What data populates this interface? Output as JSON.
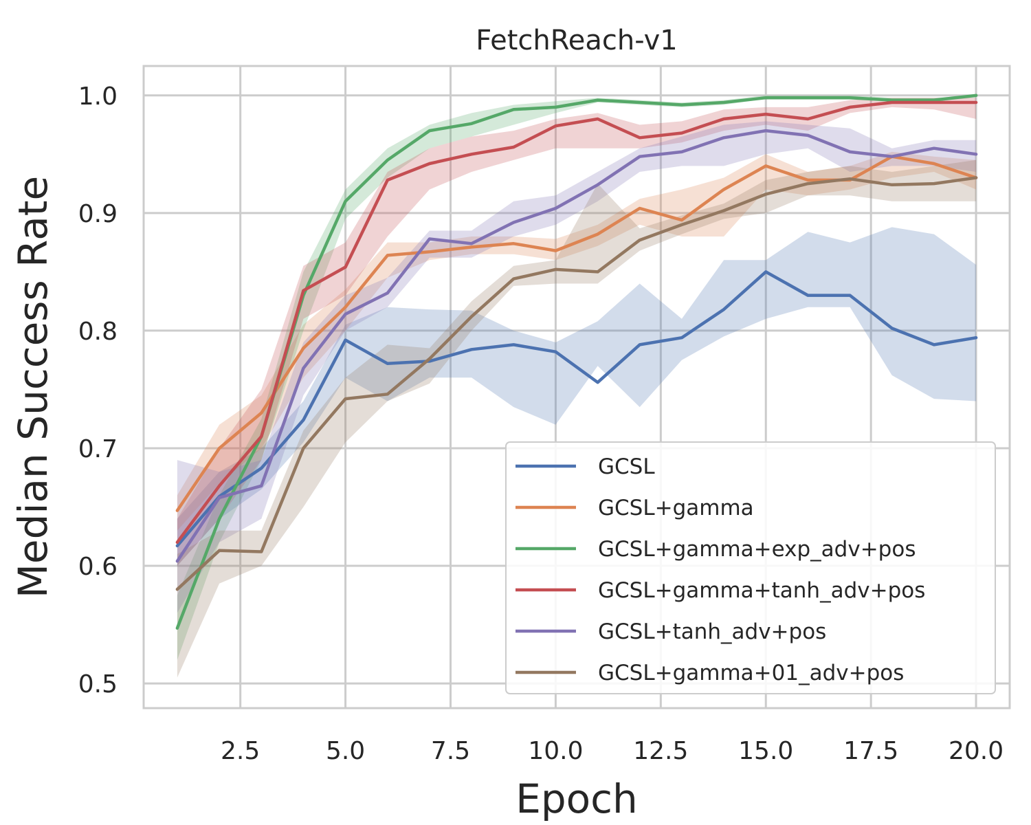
{
  "chart_data": {
    "type": "line",
    "title": "FetchReach-v1",
    "xlabel": "Epoch",
    "ylabel": "Median Success Rate",
    "xlim": [
      0.2,
      20.8
    ],
    "ylim": [
      0.479,
      1.025
    ],
    "xticks": [
      2.5,
      5.0,
      7.5,
      10.0,
      12.5,
      15.0,
      17.5,
      20.0
    ],
    "xtick_labels": [
      "2.5",
      "5.0",
      "7.5",
      "10.0",
      "12.5",
      "15.0",
      "17.5",
      "20.0"
    ],
    "yticks": [
      0.5,
      0.6,
      0.7,
      0.8,
      0.9,
      1.0
    ],
    "ytick_labels": [
      "0.5",
      "0.6",
      "0.7",
      "0.8",
      "0.9",
      "1.0"
    ],
    "grid": true,
    "legend_position": "lower-right",
    "x": [
      1,
      2,
      3,
      4,
      5,
      6,
      7,
      8,
      9,
      10,
      11,
      12,
      13,
      14,
      15,
      16,
      17,
      18,
      19,
      20
    ],
    "series": [
      {
        "name": "GCSL",
        "color": "#4c72b0",
        "values": [
          0.617,
          0.659,
          0.683,
          0.724,
          0.792,
          0.772,
          0.774,
          0.784,
          0.788,
          0.782,
          0.756,
          0.788,
          0.794,
          0.818,
          0.85,
          0.83,
          0.83,
          0.802,
          0.788,
          0.794
        ],
        "lower": [
          0.6,
          0.64,
          0.665,
          0.705,
          0.76,
          0.74,
          0.76,
          0.76,
          0.735,
          0.72,
          0.77,
          0.735,
          0.775,
          0.795,
          0.81,
          0.82,
          0.82,
          0.762,
          0.742,
          0.74
        ],
        "upper": [
          0.64,
          0.68,
          0.7,
          0.74,
          0.805,
          0.82,
          0.818,
          0.817,
          0.8,
          0.79,
          0.808,
          0.84,
          0.81,
          0.86,
          0.86,
          0.884,
          0.875,
          0.888,
          0.882,
          0.856
        ]
      },
      {
        "name": "GCSL+gamma",
        "color": "#dd8452",
        "values": [
          0.647,
          0.7,
          0.73,
          0.785,
          0.82,
          0.864,
          0.867,
          0.871,
          0.874,
          0.868,
          0.882,
          0.904,
          0.894,
          0.92,
          0.94,
          0.928,
          0.928,
          0.948,
          0.942,
          0.93
        ],
        "lower": [
          0.63,
          0.67,
          0.7,
          0.76,
          0.8,
          0.845,
          0.86,
          0.865,
          0.865,
          0.86,
          0.872,
          0.89,
          0.88,
          0.88,
          0.92,
          0.915,
          0.92,
          0.93,
          0.935,
          0.92
        ],
        "upper": [
          0.66,
          0.72,
          0.745,
          0.805,
          0.835,
          0.875,
          0.875,
          0.88,
          0.88,
          0.878,
          0.89,
          0.912,
          0.92,
          0.93,
          0.95,
          0.935,
          0.94,
          0.952,
          0.948,
          0.945
        ]
      },
      {
        "name": "GCSL+gamma+exp_adv+pos",
        "color": "#55a868",
        "values": [
          0.547,
          0.64,
          0.71,
          0.83,
          0.91,
          0.945,
          0.97,
          0.976,
          0.988,
          0.99,
          0.996,
          0.994,
          0.992,
          0.994,
          0.998,
          0.998,
          0.998,
          0.996,
          0.996,
          1.0
        ],
        "lower": [
          0.52,
          0.62,
          0.69,
          0.8,
          0.895,
          0.93,
          0.955,
          0.965,
          0.975,
          0.985,
          0.994,
          0.992,
          0.99,
          0.992,
          0.997,
          0.997,
          0.997,
          0.995,
          0.995,
          0.998
        ],
        "upper": [
          0.575,
          0.66,
          0.725,
          0.85,
          0.92,
          0.955,
          0.975,
          0.985,
          0.992,
          0.995,
          0.998,
          0.996,
          0.994,
          0.996,
          1.0,
          1.0,
          1.0,
          0.998,
          0.998,
          1.0
        ]
      },
      {
        "name": "GCSL+gamma+tanh_adv+pos",
        "color": "#c44e52",
        "values": [
          0.62,
          0.668,
          0.71,
          0.834,
          0.854,
          0.928,
          0.942,
          0.95,
          0.956,
          0.974,
          0.98,
          0.964,
          0.968,
          0.98,
          0.984,
          0.98,
          0.99,
          0.994,
          0.994,
          0.994
        ],
        "lower": [
          0.6,
          0.64,
          0.69,
          0.81,
          0.83,
          0.88,
          0.92,
          0.935,
          0.945,
          0.955,
          0.955,
          0.955,
          0.96,
          0.97,
          0.975,
          0.97,
          0.985,
          0.99,
          0.988,
          0.98
        ],
        "upper": [
          0.64,
          0.7,
          0.75,
          0.855,
          0.875,
          0.935,
          0.955,
          0.965,
          0.97,
          0.98,
          0.985,
          0.975,
          0.978,
          0.988,
          0.99,
          0.99,
          0.996,
          0.998,
          0.998,
          0.998
        ]
      },
      {
        "name": "GCSL+tanh_adv+pos",
        "color": "#8172b3",
        "values": [
          0.604,
          0.658,
          0.668,
          0.768,
          0.814,
          0.832,
          0.878,
          0.874,
          0.892,
          0.904,
          0.924,
          0.948,
          0.952,
          0.964,
          0.97,
          0.966,
          0.952,
          0.948,
          0.955,
          0.95
        ],
        "lower": [
          0.56,
          0.62,
          0.64,
          0.745,
          0.8,
          0.82,
          0.862,
          0.862,
          0.88,
          0.89,
          0.91,
          0.935,
          0.94,
          0.94,
          0.95,
          0.955,
          0.935,
          0.94,
          0.94,
          0.935
        ],
        "upper": [
          0.69,
          0.68,
          0.69,
          0.79,
          0.83,
          0.845,
          0.885,
          0.885,
          0.91,
          0.915,
          0.935,
          0.955,
          0.965,
          0.975,
          0.978,
          0.975,
          0.972,
          0.955,
          0.962,
          0.962
        ]
      },
      {
        "name": "GCSL+gamma+01_adv+pos",
        "color": "#937860",
        "values": [
          0.58,
          0.613,
          0.612,
          0.7,
          0.742,
          0.746,
          0.776,
          0.812,
          0.844,
          0.852,
          0.85,
          0.877,
          0.89,
          0.902,
          0.916,
          0.925,
          0.929,
          0.924,
          0.925,
          0.93
        ],
        "lower": [
          0.505,
          0.585,
          0.6,
          0.65,
          0.705,
          0.74,
          0.755,
          0.8,
          0.838,
          0.84,
          0.84,
          0.868,
          0.882,
          0.895,
          0.9,
          0.915,
          0.915,
          0.91,
          0.91,
          0.91
        ],
        "upper": [
          0.61,
          0.63,
          0.63,
          0.715,
          0.76,
          0.788,
          0.785,
          0.825,
          0.855,
          0.86,
          0.925,
          0.887,
          0.898,
          0.908,
          0.928,
          0.935,
          0.94,
          0.935,
          0.94,
          0.945
        ]
      }
    ]
  }
}
